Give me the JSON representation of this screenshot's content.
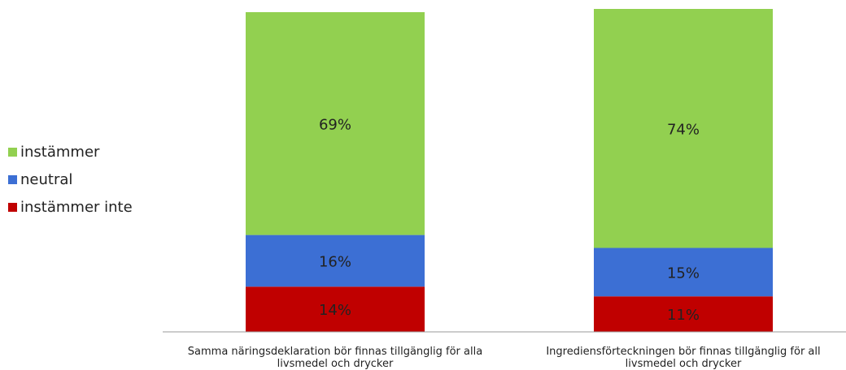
{
  "chart_data": {
    "type": "bar",
    "stacked": true,
    "categories": [
      [
        "Samma näringsdeklaration bör finnas tillgänglig för alla",
        "livsmedel och drycker"
      ],
      [
        "Ingrediensförteckningen bör finnas tillgänglig för all",
        "livsmedel och drycker"
      ]
    ],
    "series": [
      {
        "name": "instämmer inte",
        "color": "#C00000",
        "values": [
          14,
          11
        ],
        "labels": [
          "14%",
          "11%"
        ]
      },
      {
        "name": "neutral",
        "color": "#3C6FD4",
        "values": [
          16,
          15
        ],
        "labels": [
          "16%",
          "15%"
        ]
      },
      {
        "name": "instämmer",
        "color": "#92D050",
        "values": [
          69,
          74
        ],
        "labels": [
          "69%",
          "74%"
        ]
      }
    ],
    "ylim": [
      0,
      100
    ],
    "legend_position": "left",
    "grid": false
  }
}
